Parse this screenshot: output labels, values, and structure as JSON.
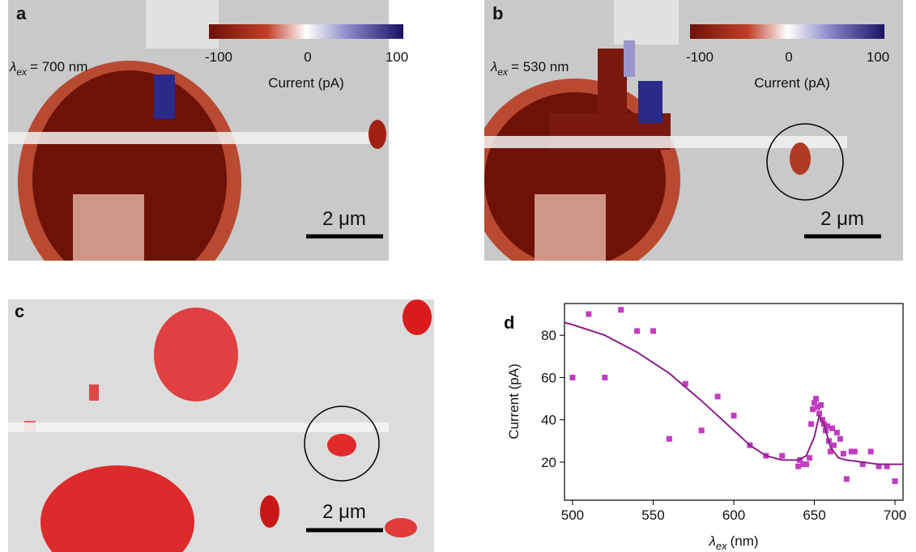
{
  "panels": [
    {
      "label": "a",
      "excitation": {
        "symbol": "λ",
        "subscript": "ex",
        "text": "= 700 nm"
      },
      "colorbar": {
        "lim": [
          -100,
          100
        ],
        "ticks": [
          -100,
          0,
          100
        ],
        "label": "Current (pA)"
      },
      "scale_bar": "2 μm"
    },
    {
      "label": "b",
      "excitation": {
        "symbol": "λ",
        "subscript": "ex",
        "text": "= 530 nm"
      },
      "colorbar": {
        "lim": [
          -100,
          100
        ],
        "ticks": [
          -100,
          0,
          100
        ],
        "label": "Current (pA)"
      },
      "scale_bar": "2 μm"
    },
    {
      "label": "c",
      "scale_bar": "2 μm"
    }
  ],
  "chart_data": {
    "type": "scatter",
    "label": "d",
    "x_label": {
      "symbol": "λ",
      "subscript": "ex",
      "text": "(nm)"
    },
    "y_label": "Current (pA)",
    "xlim": [
      495,
      705
    ],
    "ylim": [
      2,
      95
    ],
    "xticks": [
      500,
      550,
      600,
      650,
      700
    ],
    "yticks": [
      20,
      40,
      60,
      80
    ],
    "series": [
      {
        "style": "markers",
        "color": "#c23cc2",
        "x": [
          500,
          510,
          520,
          530,
          540,
          550,
          560,
          570,
          580,
          590,
          600,
          610,
          620,
          630,
          640,
          641,
          643,
          645,
          647,
          648,
          649,
          650,
          651,
          652,
          653,
          654,
          655,
          656,
          657,
          658,
          659,
          660,
          661,
          662,
          664,
          666,
          668,
          670,
          673,
          675,
          680,
          685,
          690,
          695,
          700
        ],
        "values": [
          60,
          90,
          60,
          92,
          82,
          82,
          31,
          57,
          35,
          51,
          42,
          28,
          23,
          23,
          18,
          21,
          19,
          19,
          22,
          38,
          45,
          48,
          50,
          46,
          43,
          47,
          40,
          38,
          35,
          37,
          30,
          25,
          36,
          28,
          34,
          31,
          24,
          12,
          25,
          25,
          19,
          25,
          18,
          18,
          11
        ]
      },
      {
        "style": "line",
        "color": "#8a1f8a",
        "x": [
          495,
          500,
          520,
          540,
          560,
          580,
          600,
          610,
          620,
          630,
          640,
          645,
          650,
          653,
          656,
          660,
          665,
          670,
          680,
          690,
          700,
          705
        ],
        "values": [
          86,
          85,
          80,
          72,
          62,
          49,
          35,
          28,
          23,
          21,
          21,
          23,
          32,
          42,
          38,
          27,
          22,
          21,
          20,
          19,
          19,
          19
        ]
      }
    ]
  }
}
